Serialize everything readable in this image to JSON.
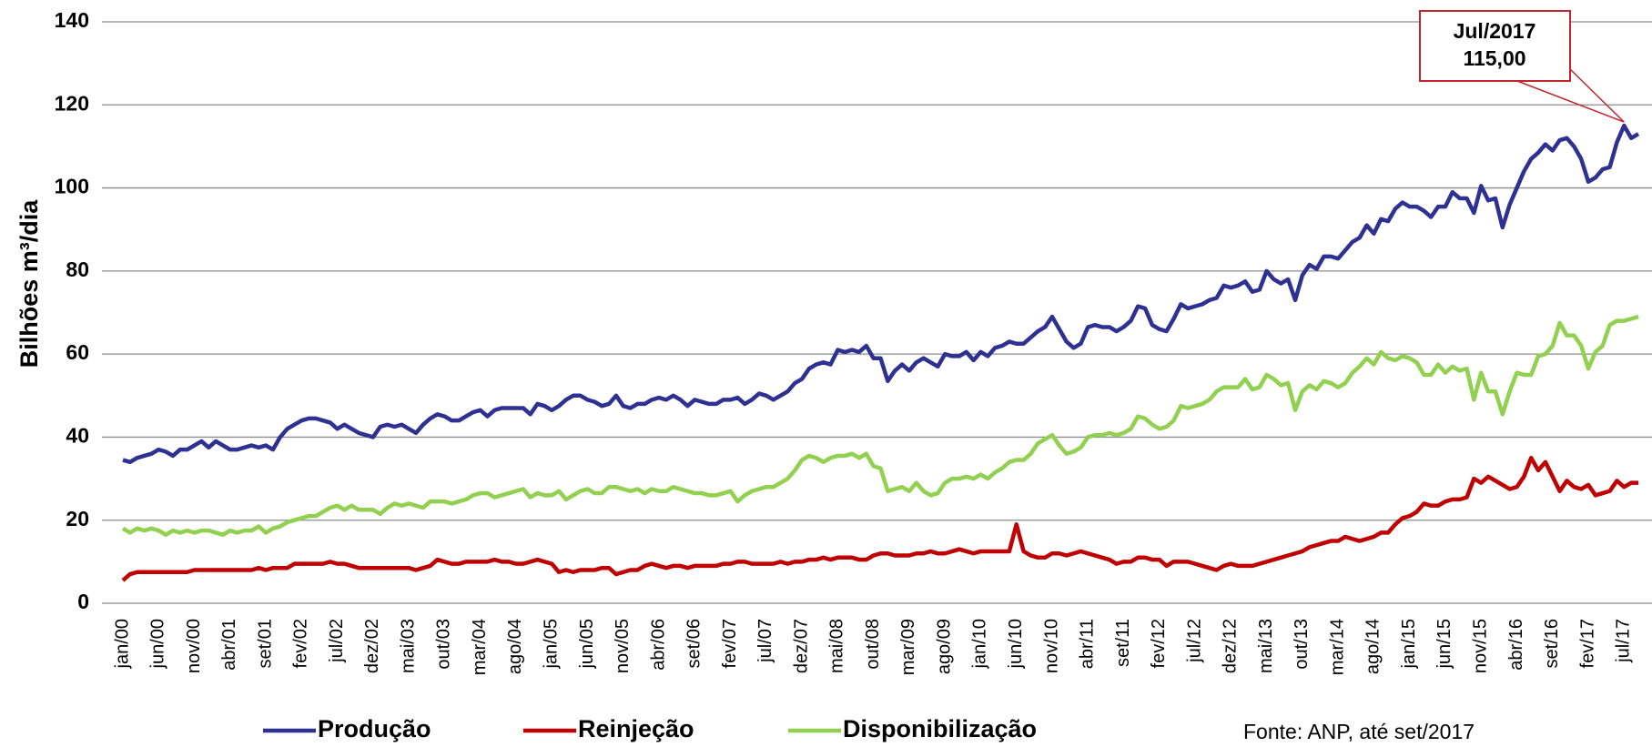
{
  "chart_data": {
    "type": "line",
    "y_label": "Bilhões m³/dia",
    "source": "Fonte: ANP, até set/2017",
    "annotation": [
      "Jul/2017",
      "115,00"
    ],
    "categories": [
      "jan/00",
      null,
      null,
      null,
      null,
      "jun/00",
      null,
      null,
      null,
      null,
      "nov/00",
      null,
      null,
      null,
      null,
      "abr/01",
      null,
      null,
      null,
      null,
      "set/01",
      null,
      null,
      null,
      null,
      "fev/02",
      null,
      null,
      null,
      null,
      "jul/02",
      null,
      null,
      null,
      null,
      "dez/02",
      null,
      null,
      null,
      null,
      "mai/03",
      null,
      null,
      null,
      null,
      "out/03",
      null,
      null,
      null,
      null,
      "mar/04",
      null,
      null,
      null,
      null,
      "ago/04",
      null,
      null,
      null,
      null,
      "jan/05",
      null,
      null,
      null,
      null,
      "jun/05",
      null,
      null,
      null,
      null,
      "nov/05",
      null,
      null,
      null,
      null,
      "abr/06",
      null,
      null,
      null,
      null,
      "set/06",
      null,
      null,
      null,
      null,
      "fev/07",
      null,
      null,
      null,
      null,
      "jul/07",
      null,
      null,
      null,
      null,
      "dez/07",
      null,
      null,
      null,
      null,
      "mai/08",
      null,
      null,
      null,
      null,
      "out/08",
      null,
      null,
      null,
      null,
      "mar/09",
      null,
      null,
      null,
      null,
      "ago/09",
      null,
      null,
      null,
      null,
      "jan/10",
      null,
      null,
      null,
      null,
      "jun/10",
      null,
      null,
      null,
      null,
      "nov/10",
      null,
      null,
      null,
      null,
      "abr/11",
      null,
      null,
      null,
      null,
      "set/11",
      null,
      null,
      null,
      null,
      "fev/12",
      null,
      null,
      null,
      null,
      "jul/12",
      null,
      null,
      null,
      null,
      "dez/12",
      null,
      null,
      null,
      null,
      "mai/13",
      null,
      null,
      null,
      null,
      "out/13",
      null,
      null,
      null,
      null,
      "mar/14",
      null,
      null,
      null,
      null,
      "ago/14",
      null,
      null,
      null,
      null,
      "jan/15",
      null,
      null,
      null,
      null,
      "jun/15",
      null,
      null,
      null,
      null,
      "nov/15",
      null,
      null,
      null,
      null,
      "abr/16",
      null,
      null,
      null,
      null,
      "set/16",
      null,
      null,
      null,
      null,
      "fev/17",
      null,
      null,
      null,
      null,
      "jul/17",
      null,
      null
    ],
    "series": [
      {
        "name": "Produção",
        "color": "#2e3192",
        "values": [
          34.5,
          34,
          35,
          35.5,
          36,
          37,
          36.5,
          35.5,
          37,
          37,
          38,
          39,
          37.5,
          39,
          38,
          37,
          37,
          37.5,
          38,
          37.5,
          38,
          37,
          40,
          42,
          43,
          44,
          44.5,
          44.5,
          44,
          43.5,
          42,
          43,
          42,
          41,
          40.5,
          40,
          42.5,
          43,
          42.5,
          43,
          42,
          41,
          43,
          44.5,
          45.5,
          45,
          44,
          44,
          45,
          46,
          46.5,
          45,
          46.5,
          47,
          47,
          47,
          47,
          45.5,
          48,
          47.5,
          46.5,
          47.5,
          49,
          50,
          50,
          49,
          48.5,
          47.5,
          48,
          50,
          47.5,
          47,
          48,
          48,
          49,
          49.5,
          49,
          50,
          49,
          47.5,
          49,
          48.5,
          48,
          48,
          49,
          49,
          49.5,
          48,
          49,
          50.5,
          50,
          49,
          50,
          51,
          53,
          54,
          56.5,
          57.5,
          58,
          57.5,
          61,
          60.5,
          61,
          60.5,
          62,
          59,
          59,
          53.5,
          56,
          57.5,
          56,
          58,
          59,
          58,
          57,
          60,
          59.5,
          59.5,
          60.5,
          58.5,
          60.5,
          59.5,
          61.5,
          62,
          63,
          62.5,
          62.5,
          64,
          65.5,
          66.5,
          69,
          66,
          63,
          61.5,
          62.5,
          66.5,
          67,
          66.5,
          66.5,
          65.5,
          66.5,
          68,
          71.5,
          71,
          67,
          66,
          65.5,
          68.5,
          72,
          71,
          71.5,
          72,
          73,
          73.5,
          76.5,
          76,
          76.5,
          77.5,
          75,
          75.5,
          80,
          78,
          77,
          78,
          73,
          79,
          81.5,
          80.5,
          83.5,
          83.5,
          83,
          85,
          87,
          88,
          91,
          89,
          92.5,
          92,
          95,
          96.5,
          95.5,
          95.5,
          94.5,
          93,
          95.5,
          95.5,
          99,
          97.5,
          97.5,
          94,
          100.5,
          97,
          97.5,
          90.5,
          96,
          100,
          104,
          107,
          108.5,
          110.5,
          109,
          111.5,
          112,
          110,
          107,
          101.5,
          102.5,
          104.5,
          105,
          111,
          115,
          112,
          113
        ]
      },
      {
        "name": "Reinjeção",
        "color": "#c00000",
        "values": [
          5.5,
          7,
          7.5,
          7.5,
          7.5,
          7.5,
          7.5,
          7.5,
          7.5,
          7.5,
          8,
          8,
          8,
          8,
          8,
          8,
          8,
          8,
          8,
          8.5,
          8,
          8.5,
          8.5,
          8.5,
          9.5,
          9.5,
          9.5,
          9.5,
          9.5,
          10,
          9.5,
          9.5,
          9,
          8.5,
          8.5,
          8.5,
          8.5,
          8.5,
          8.5,
          8.5,
          8.5,
          8,
          8.5,
          9,
          10.5,
          10,
          9.5,
          9.5,
          10,
          10,
          10,
          10,
          10.5,
          10,
          10,
          9.5,
          9.5,
          10,
          10.5,
          10,
          9.5,
          7.5,
          8,
          7.5,
          8,
          8,
          8,
          8.5,
          8.5,
          7,
          7.5,
          8,
          8,
          9,
          9.5,
          9,
          8.5,
          9,
          9,
          8.5,
          9,
          9,
          9,
          9,
          9.5,
          9.5,
          10,
          10,
          9.5,
          9.5,
          9.5,
          9.5,
          10,
          9.5,
          10,
          10,
          10.5,
          10.5,
          11,
          10.5,
          11,
          11,
          11,
          10.5,
          10.5,
          11.5,
          12,
          12,
          11.5,
          11.5,
          11.5,
          12,
          12,
          12.5,
          12,
          12,
          12.5,
          13,
          12.5,
          12,
          12.5,
          12.5,
          12.5,
          12.5,
          12.5,
          19,
          12.5,
          11.5,
          11,
          11,
          12,
          12,
          11.5,
          12,
          12.5,
          12,
          11.5,
          11,
          10.5,
          9.5,
          10,
          10,
          11,
          11,
          10.5,
          10.5,
          9,
          10,
          10,
          10,
          9.5,
          9,
          8.5,
          8,
          9,
          9.5,
          9,
          9,
          9,
          9.5,
          10,
          10.5,
          11,
          11.5,
          12,
          12.5,
          13.5,
          14,
          14.5,
          15,
          15,
          16,
          15.5,
          15,
          15.5,
          16,
          17,
          17,
          19,
          20.5,
          21,
          22,
          24,
          23.5,
          23.5,
          24.5,
          25,
          25,
          25.5,
          30,
          29,
          30.5,
          29.5,
          28.5,
          27.5,
          28,
          30.5,
          35,
          32,
          34,
          30.5,
          27,
          29.5,
          28,
          27.5,
          28.5,
          26,
          26.5,
          27,
          29.5,
          28,
          29,
          29
        ]
      },
      {
        "name": "Disponibilização",
        "color": "#92d050",
        "values": [
          18,
          17,
          18,
          17.5,
          18,
          17.5,
          16.5,
          17.5,
          17,
          17.5,
          17,
          17.5,
          17.5,
          17,
          16.5,
          17.5,
          17,
          17.5,
          17.5,
          18.5,
          17,
          18,
          18.5,
          19.5,
          20,
          20.5,
          21,
          21,
          22,
          23,
          23.5,
          22.5,
          23.5,
          22.5,
          22.5,
          22.5,
          21.5,
          23,
          24,
          23.5,
          24,
          23.5,
          23,
          24.5,
          24.5,
          24.5,
          24,
          24.5,
          25,
          26,
          26.5,
          26.5,
          25.5,
          26,
          26.5,
          27,
          27.5,
          25.5,
          26.5,
          26,
          26,
          27,
          25,
          26,
          27,
          27.5,
          26.5,
          26.5,
          28,
          28,
          27.5,
          27,
          27.5,
          26.5,
          27.5,
          27,
          27,
          28,
          27.5,
          27,
          26.5,
          26.5,
          26,
          26,
          26.5,
          27,
          24.5,
          26,
          27,
          27.5,
          28,
          28,
          29,
          30,
          32,
          34.5,
          35.5,
          35,
          34,
          35,
          35.5,
          35.5,
          36,
          35,
          36,
          33,
          32.5,
          27,
          27.5,
          28,
          27,
          29,
          27,
          26,
          26.5,
          29,
          30,
          30,
          30.5,
          30,
          31,
          30,
          31.5,
          32.5,
          34,
          34.5,
          34.5,
          36,
          38.5,
          39.5,
          40.5,
          38,
          36,
          36.5,
          37.5,
          40,
          40.5,
          40.5,
          41,
          40.5,
          41,
          42,
          45,
          44.5,
          43,
          42,
          42.5,
          44,
          47.5,
          47,
          47.5,
          48,
          49,
          51,
          52,
          52,
          52,
          54,
          51.5,
          52,
          55,
          54,
          52.5,
          53,
          46.5,
          51,
          52.5,
          51.5,
          53.5,
          53,
          52,
          53,
          55.5,
          57,
          59,
          57.5,
          60.5,
          59,
          58.5,
          59.5,
          59,
          58,
          55,
          55,
          57.5,
          55.5,
          57,
          56,
          56.5,
          49,
          55.5,
          51,
          51,
          45.5,
          51,
          55.5,
          55,
          55,
          59.5,
          60,
          62,
          67.5,
          64.5,
          64.5,
          62,
          56.5,
          60.5,
          62,
          67,
          68,
          68,
          68.5,
          69
        ]
      }
    ],
    "ylim": [
      0,
      140
    ],
    "yticks": [
      0,
      20,
      40,
      60,
      80,
      100,
      120,
      140
    ],
    "grid": true
  }
}
